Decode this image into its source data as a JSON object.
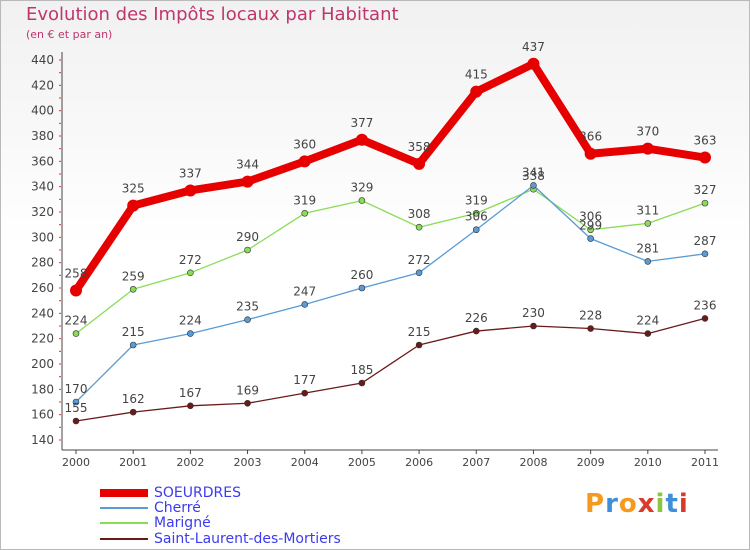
{
  "header": {
    "title": "Evolution des Impôts locaux par Habitant",
    "subtitle": "(en € et par an)"
  },
  "logo": {
    "text": "Proxiti",
    "colors": [
      "#f39a1f",
      "#3d8fd8",
      "#f39a1f",
      "#d93a2b",
      "#8cc63f",
      "#3d8fd8",
      "#d93a2b"
    ]
  },
  "chart_data": {
    "type": "line",
    "x": [
      "2000",
      "2001",
      "2002",
      "2003",
      "2004",
      "2005",
      "2006",
      "2007",
      "2008",
      "2009",
      "2010",
      "2011"
    ],
    "ylim": [
      140,
      440
    ],
    "yticks": [
      140,
      160,
      180,
      200,
      220,
      240,
      260,
      280,
      300,
      320,
      340,
      360,
      380,
      400,
      420,
      440
    ],
    "grid": false,
    "legend_position": "bottom-left",
    "series": [
      {
        "name": "SOEURDRES",
        "color": "#e60000",
        "values": [
          258,
          325,
          337,
          344,
          360,
          377,
          358,
          415,
          437,
          366,
          370,
          363
        ]
      },
      {
        "name": "Cherré",
        "color": "#5a9bd5",
        "values": [
          170,
          215,
          224,
          235,
          247,
          260,
          272,
          306,
          341,
          299,
          281,
          287
        ]
      },
      {
        "name": "Marigné",
        "color": "#88dd55",
        "values": [
          224,
          259,
          272,
          290,
          319,
          329,
          308,
          319,
          338,
          306,
          311,
          327
        ]
      },
      {
        "name": "Saint-Laurent-des-Mortiers",
        "color": "#6b1a1a",
        "values": [
          155,
          162,
          167,
          169,
          177,
          185,
          215,
          226,
          230,
          228,
          224,
          236
        ]
      }
    ]
  }
}
